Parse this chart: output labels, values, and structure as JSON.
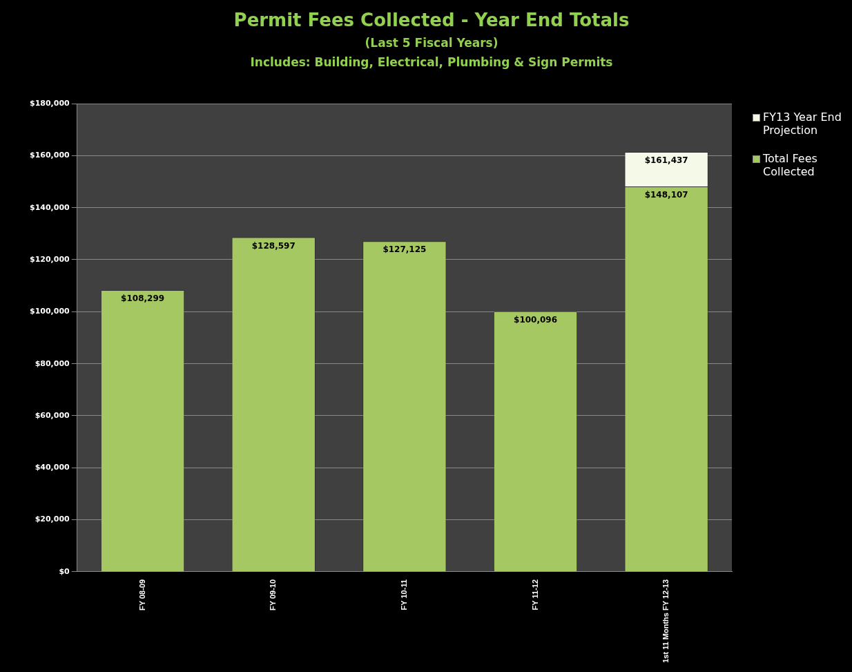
{
  "chart_data": {
    "type": "bar",
    "title": "Permit Fees Collected - Year End Totals",
    "subtitle": "(Last 5 Fiscal Years)",
    "annotations": [
      "Includes: Building, Electrical, Plumbing & Sign Permits"
    ],
    "categories": [
      "FY 08-09",
      "FY 09-10",
      "FY 10-11",
      "FY 11-12",
      "1st 11 Months FY 12-13"
    ],
    "stacked": true,
    "series": [
      {
        "name": "Total Fees Collected",
        "color": "#a6c862",
        "values": [
          108299,
          128597,
          127125,
          100096,
          148107
        ],
        "value_labels": [
          "$108,299",
          "$128,597",
          "$127,125",
          "$100,096",
          "$148,107"
        ]
      },
      {
        "name": "FY13 Year End Projection",
        "color": "#f4f9e8",
        "values": [
          null,
          null,
          null,
          null,
          13330
        ]
      }
    ],
    "ylim": [
      0,
      180000
    ],
    "yticks": [
      {
        "value": 0,
        "label": "$0"
      },
      {
        "value": 20000,
        "label": "$20,000"
      },
      {
        "value": 40000,
        "label": "$40,000"
      },
      {
        "value": 60000,
        "label": "$60,000"
      },
      {
        "value": 80000,
        "label": "$80,000"
      },
      {
        "value": 100000,
        "label": "$100,000"
      },
      {
        "value": 120000,
        "label": "$120,000"
      },
      {
        "value": 140000,
        "label": "$140,000"
      },
      {
        "value": 160000,
        "label": "$160,000"
      },
      {
        "value": 180000,
        "label": "$180,000"
      }
    ],
    "totals": [
      null,
      null,
      null,
      null,
      "$161,437"
    ],
    "grid": "y",
    "legend": "right"
  }
}
